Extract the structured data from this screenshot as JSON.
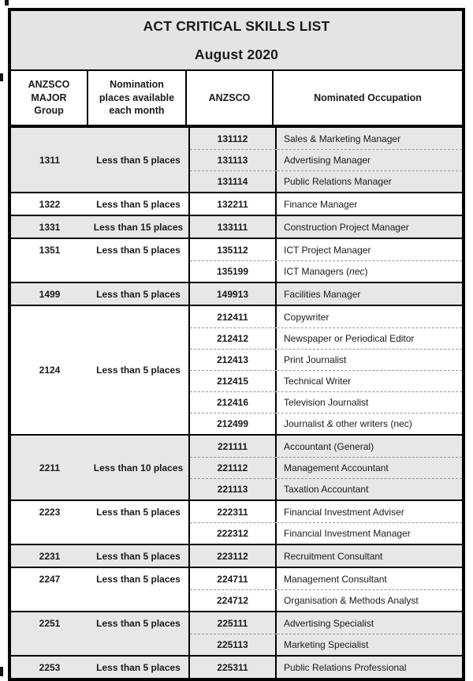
{
  "title": {
    "line1": "ACT CRITICAL SKILLS LIST",
    "line2": "August 2020"
  },
  "header": {
    "col_group": "ANZSCO\nMAJOR\nGroup",
    "col_places": "Nomination\nplaces available\neach month",
    "col_anzsco": "ANZSCO",
    "col_occupation": "Nominated Occupation"
  },
  "groups": [
    {
      "code": "1311",
      "places": "Less than 5 places",
      "shaded": true,
      "occupations": [
        {
          "code": "131112",
          "name": "Sales & Marketing Manager"
        },
        {
          "code": "131113",
          "name": "Advertising Manager"
        },
        {
          "code": "131114",
          "name": "Public Relations Manager"
        }
      ]
    },
    {
      "code": "1322",
      "places": "Less than 5 places",
      "shaded": false,
      "occupations": [
        {
          "code": "132211",
          "name": "Finance Manager"
        }
      ]
    },
    {
      "code": "1331",
      "places": "Less than 15 places",
      "shaded": true,
      "occupations": [
        {
          "code": "133111",
          "name": "Construction Project Manager"
        }
      ]
    },
    {
      "code": "1351",
      "places": "Less than 5 places",
      "shaded": false,
      "occupations": [
        {
          "code": "135112",
          "name": "ICT Project Manager"
        },
        {
          "code": "135199",
          "name": "ICT Managers (nec)",
          "italic_in_parens": "nec"
        }
      ]
    },
    {
      "code": "1499",
      "places": "Less than 5 places",
      "shaded": true,
      "occupations": [
        {
          "code": "149913",
          "name": "Facilities Manager"
        }
      ]
    },
    {
      "code": "2124",
      "places": "Less than 5 places",
      "shaded": false,
      "occupations": [
        {
          "code": "212411",
          "name": "Copywriter"
        },
        {
          "code": "212412",
          "name": "Newspaper or Periodical Editor"
        },
        {
          "code": "212413",
          "name": "Print Journalist"
        },
        {
          "code": "212415",
          "name": "Technical Writer"
        },
        {
          "code": "212416",
          "name": "Television Journalist"
        },
        {
          "code": "212499",
          "name": "Journalist & other writers (nec)"
        }
      ]
    },
    {
      "code": "2211",
      "places": "Less than 10 places",
      "shaded": true,
      "occupations": [
        {
          "code": "221111",
          "name": "Accountant (General)"
        },
        {
          "code": "221112",
          "name": "Management Accountant"
        },
        {
          "code": "221113",
          "name": "Taxation Accountant"
        }
      ]
    },
    {
      "code": "2223",
      "places": "Less than 5 places",
      "shaded": false,
      "occupations": [
        {
          "code": "222311",
          "name": "Financial Investment Adviser"
        },
        {
          "code": "222312",
          "name": "Financial Investment Manager"
        }
      ]
    },
    {
      "code": "2231",
      "places": "Less than 5 places",
      "shaded": true,
      "occupations": [
        {
          "code": "223112",
          "name": "Recruitment Consultant"
        }
      ]
    },
    {
      "code": "2247",
      "places": "Less than 5 places",
      "shaded": false,
      "occupations": [
        {
          "code": "224711",
          "name": "Management Consultant"
        },
        {
          "code": "224712",
          "name": "Organisation & Methods Analyst"
        }
      ]
    },
    {
      "code": "2251",
      "places": "Less than 5 places",
      "shaded": true,
      "occupations": [
        {
          "code": "225111",
          "name": "Advertising Specialist"
        },
        {
          "code": "225113",
          "name": "Marketing Specialist"
        }
      ]
    },
    {
      "code": "2253",
      "places": "Less than 5 places",
      "shaded": true,
      "occupations": [
        {
          "code": "225311",
          "name": "Public Relations Professional"
        }
      ]
    }
  ],
  "colors": {
    "table_border": "#000000",
    "shaded_row_bg": "#e7e7e7",
    "title_bg": "#e4e4e4",
    "dashed_line": "#979797",
    "text": "#1a1a1a"
  }
}
